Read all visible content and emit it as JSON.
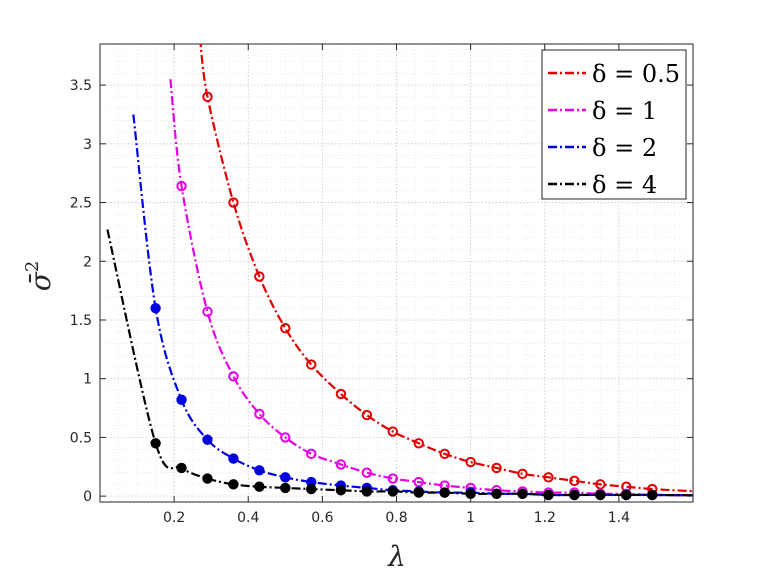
{
  "chart_data": {
    "type": "line",
    "xlabel": "λ",
    "ylabel": "σ̄",
    "ylabel_superscript": "2",
    "xlim": [
      0,
      1.6
    ],
    "ylim": [
      -0.05,
      3.85
    ],
    "x_ticks": [
      0.2,
      0.4,
      0.6,
      0.8,
      1,
      1.2,
      1.4
    ],
    "x_tick_labels": [
      "0.2",
      "0.4",
      "0.6",
      "0.8",
      "1",
      "1.2",
      "1.4"
    ],
    "y_ticks": [
      0,
      0.5,
      1,
      1.5,
      2,
      2.5,
      3,
      3.5
    ],
    "y_tick_labels": [
      "0",
      "0.5",
      "1",
      "1.5",
      "2",
      "2.5",
      "3",
      "3.5"
    ],
    "grid": true,
    "minor_grid": true,
    "legend_position": "top-right",
    "series": [
      {
        "name": "δ = 0.5",
        "color": "#e00000",
        "line_x_start": 0.27,
        "line_coefficient": 0.98,
        "markers_x": [
          0.29,
          0.36,
          0.43,
          0.5,
          0.57,
          0.65,
          0.72,
          0.79,
          0.86,
          0.93,
          1.0,
          1.07,
          1.14,
          1.21,
          1.28,
          1.35,
          1.42,
          1.49
        ],
        "markers_y": [
          3.4,
          2.5,
          1.87,
          1.43,
          1.12,
          0.87,
          0.69,
          0.55,
          0.45,
          0.36,
          0.29,
          0.24,
          0.19,
          0.16,
          0.13,
          0.1,
          0.08,
          0.06
        ],
        "marker_filled": false
      },
      {
        "name": "δ = 1",
        "color": "#e600e6",
        "line_x_start": 0.19,
        "line_coefficient": 0.58,
        "markers_x": [
          0.22,
          0.29,
          0.36,
          0.43,
          0.5,
          0.57,
          0.65,
          0.72,
          0.79,
          0.86,
          0.93,
          1.0,
          1.07,
          1.14,
          1.21,
          1.28,
          1.35,
          1.42,
          1.49
        ],
        "markers_y": [
          2.64,
          1.57,
          1.02,
          0.7,
          0.5,
          0.36,
          0.27,
          0.2,
          0.15,
          0.12,
          0.09,
          0.07,
          0.05,
          0.04,
          0.03,
          0.03,
          0.02,
          0.02,
          0.01
        ],
        "marker_filled": false
      },
      {
        "name": "δ = 2",
        "color": "#0000e0",
        "line_x_start": 0.09,
        "line_coefficient": 0.29,
        "markers_x": [
          0.15,
          0.22,
          0.29,
          0.36,
          0.43,
          0.5,
          0.57,
          0.65,
          0.72,
          0.79,
          0.86,
          0.93,
          1.0,
          1.07,
          1.14,
          1.21,
          1.28,
          1.35,
          1.42,
          1.49
        ],
        "markers_y": [
          1.6,
          0.82,
          0.48,
          0.32,
          0.22,
          0.16,
          0.12,
          0.09,
          0.07,
          0.05,
          0.04,
          0.03,
          0.03,
          0.02,
          0.02,
          0.01,
          0.01,
          0.01,
          0.01,
          0.01
        ],
        "marker_filled": true
      },
      {
        "name": "δ = 4",
        "color": "#000000",
        "line_x_start": 0.02,
        "line_coefficient": 0.0,
        "markers_x": [
          0.15,
          0.22,
          0.29,
          0.36,
          0.43,
          0.5,
          0.57,
          0.65,
          0.72,
          0.79,
          0.86,
          0.93,
          1.0,
          1.07,
          1.14,
          1.21,
          1.28,
          1.35,
          1.42,
          1.49
        ],
        "markers_y": [
          0.45,
          0.24,
          0.15,
          0.1,
          0.08,
          0.07,
          0.06,
          0.05,
          0.04,
          0.04,
          0.03,
          0.03,
          0.02,
          0.02,
          0.02,
          0.01,
          0.01,
          0.01,
          0.01,
          0.01
        ],
        "marker_filled": true
      }
    ]
  }
}
